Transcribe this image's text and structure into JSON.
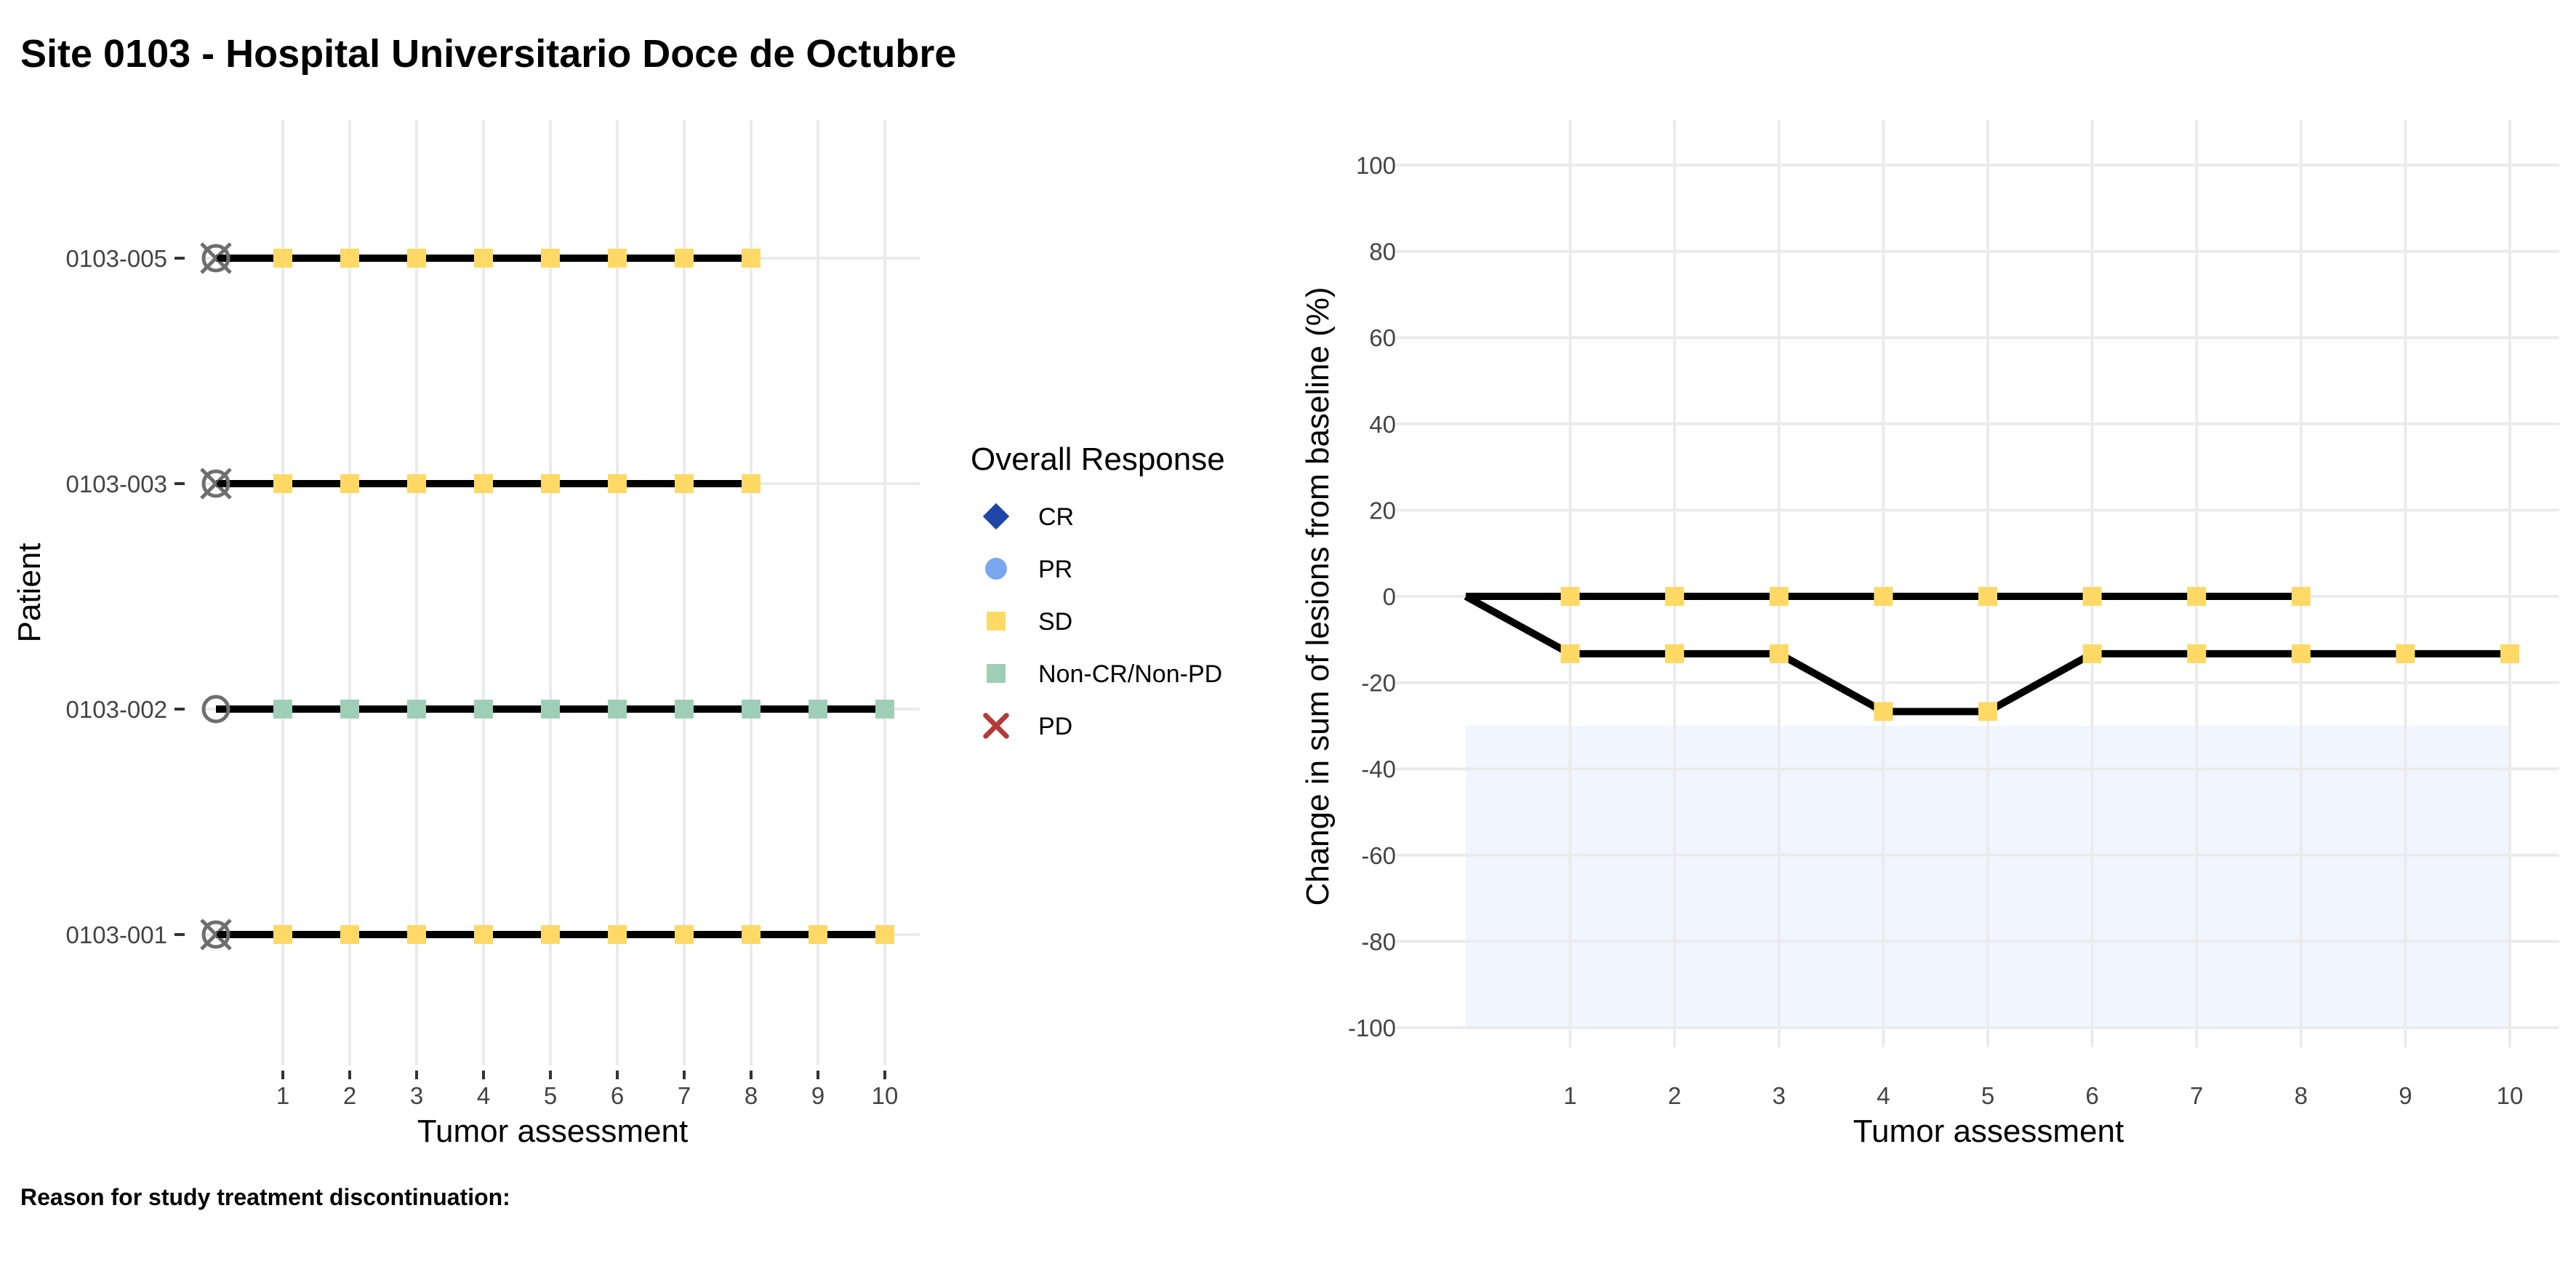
{
  "title": "Site 0103 - Hospital Universitario Doce de Octubre",
  "footer": "Reason for study treatment discontinuation:",
  "legend": {
    "title": "Overall Response",
    "items": [
      {
        "label": "CR",
        "shape": "diamond",
        "color": "#1f45a6"
      },
      {
        "label": "PR",
        "shape": "circle",
        "color": "#7aa7f0"
      },
      {
        "label": "SD",
        "shape": "square",
        "color": "#ffd966"
      },
      {
        "label": "Non-CR/Non-PD",
        "shape": "square",
        "color": "#9ecfb6"
      },
      {
        "label": "PD",
        "shape": "cross",
        "color": "#b53a3a"
      }
    ]
  },
  "chart_data": [
    {
      "type": "scatter",
      "name": "swimmer",
      "xlabel": "Tumor assessment",
      "ylabel": "Patient",
      "xlim": [
        0,
        10
      ],
      "x_ticks": [
        "1",
        "2",
        "3",
        "4",
        "5",
        "6",
        "7",
        "8",
        "9",
        "10"
      ],
      "patients": [
        {
          "id": "0103-005",
          "baseline_symbol": "circle-x",
          "assessments": [
            "SD",
            "SD",
            "SD",
            "SD",
            "SD",
            "SD",
            "SD",
            "SD"
          ]
        },
        {
          "id": "0103-003",
          "baseline_symbol": "circle-x",
          "assessments": [
            "SD",
            "SD",
            "SD",
            "SD",
            "SD",
            "SD",
            "SD",
            "SD"
          ]
        },
        {
          "id": "0103-002",
          "baseline_symbol": "circle",
          "assessments": [
            "Non-CR/Non-PD",
            "Non-CR/Non-PD",
            "Non-CR/Non-PD",
            "Non-CR/Non-PD",
            "Non-CR/Non-PD",
            "Non-CR/Non-PD",
            "Non-CR/Non-PD",
            "Non-CR/Non-PD",
            "Non-CR/Non-PD",
            "Non-CR/Non-PD"
          ]
        },
        {
          "id": "0103-001",
          "baseline_symbol": "circle-x",
          "assessments": [
            "SD",
            "SD",
            "SD",
            "SD",
            "SD",
            "SD",
            "SD",
            "SD",
            "SD",
            "SD"
          ]
        }
      ]
    },
    {
      "type": "line",
      "name": "spider",
      "xlabel": "Tumor assessment",
      "ylabel": "Change in sum of lesions from baseline (%)",
      "xlim": [
        0,
        10
      ],
      "ylim": [
        -100,
        100
      ],
      "x_ticks": [
        "1",
        "2",
        "3",
        "4",
        "5",
        "6",
        "7",
        "8",
        "9",
        "10"
      ],
      "y_ticks": [
        "100",
        "80",
        "60",
        "40",
        "20",
        "0",
        "-20",
        "-40",
        "-60",
        "-80",
        "-100"
      ],
      "response_band": {
        "y_from": -100,
        "y_to": -30,
        "color": "#f0f5fe"
      },
      "series": [
        {
          "x": [
            0,
            1,
            2,
            3,
            4,
            5,
            6,
            7,
            8
          ],
          "y": [
            0,
            0,
            0,
            0,
            0,
            0,
            0,
            0,
            0
          ],
          "marker": "SD"
        },
        {
          "x": [
            0,
            1,
            2,
            3,
            4,
            5,
            6,
            7,
            8,
            9,
            10
          ],
          "y": [
            0,
            -13.3,
            -13.3,
            -13.3,
            -26.7,
            -26.7,
            -13.3,
            -13.3,
            -13.3,
            -13.3,
            -13.3
          ],
          "marker": "SD"
        }
      ]
    }
  ]
}
